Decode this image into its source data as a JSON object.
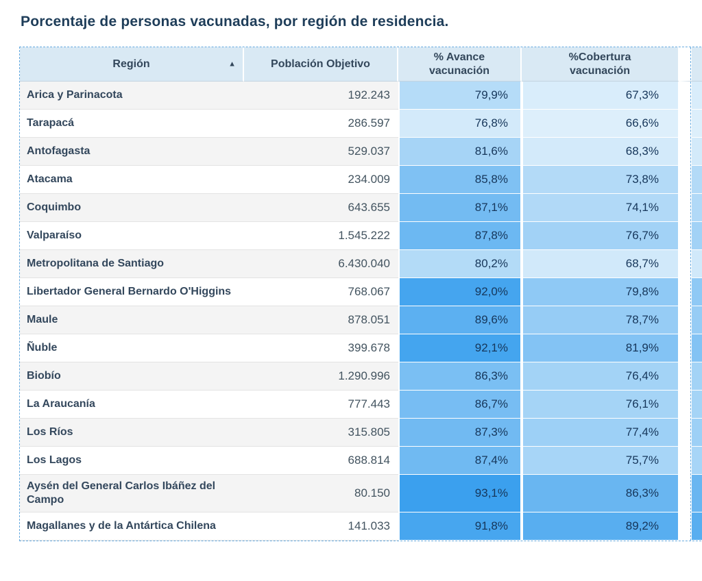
{
  "title": "Porcentaje de personas vacunadas, por región de residencia.",
  "theme": {
    "header_bg": "#d9e9f4",
    "header_text": "#33475b",
    "row_alt_bg": "#f4f4f4",
    "row_bg": "#ffffff",
    "region_text": "#33475c",
    "number_text": "#42535f",
    "pct_text": "#16365a",
    "table_outline": "#64a9df",
    "row_line": "#e3e3e3"
  },
  "table": {
    "columns": [
      {
        "label": "Región",
        "sort_icon": "▲"
      },
      {
        "label": "Población Objetivo"
      },
      {
        "label": "% Avance vacunación"
      },
      {
        "label": "%Cobertura vacunación"
      }
    ],
    "rows": [
      {
        "region": "Arica y Parinacota",
        "poblacion": "192.243",
        "avance": "79,9%",
        "avance_color": "#b5dcf8",
        "cobertura": "67,3%",
        "cobertura_color": "#d9edfb"
      },
      {
        "region": "Tarapacá",
        "poblacion": "286.597",
        "avance": "76,8%",
        "avance_color": "#d3eafa",
        "cobertura": "66,6%",
        "cobertura_color": "#ddeffb"
      },
      {
        "region": "Antofagasta",
        "poblacion": "529.037",
        "avance": "81,6%",
        "avance_color": "#a6d4f6",
        "cobertura": "68,3%",
        "cobertura_color": "#d3eafa"
      },
      {
        "region": "Atacama",
        "poblacion": "234.009",
        "avance": "85,8%",
        "avance_color": "#7fc1f3",
        "cobertura": "73,8%",
        "cobertura_color": "#b3daf7"
      },
      {
        "region": "Coquimbo",
        "poblacion": "643.655",
        "avance": "87,1%",
        "avance_color": "#73bbf2",
        "cobertura": "74,1%",
        "cobertura_color": "#b1d9f7"
      },
      {
        "region": "Valparaíso",
        "poblacion": "1.545.222",
        "avance": "87,8%",
        "avance_color": "#6cb8f2",
        "cobertura": "76,7%",
        "cobertura_color": "#a2d2f6"
      },
      {
        "region": "Metropolitana de Santiago",
        "poblacion": "6.430.040",
        "avance": "80,2%",
        "avance_color": "#b3dbf7",
        "cobertura": "68,7%",
        "cobertura_color": "#d1e9fa"
      },
      {
        "region": "Libertador General Bernardo O'Higgins",
        "poblacion": "768.067",
        "avance": "92,0%",
        "avance_color": "#45a5ef",
        "cobertura": "79,8%",
        "cobertura_color": "#8fc9f5"
      },
      {
        "region": "Maule",
        "poblacion": "878.051",
        "avance": "89,6%",
        "avance_color": "#5cb0f1",
        "cobertura": "78,7%",
        "cobertura_color": "#96ccf5"
      },
      {
        "region": "Ñuble",
        "poblacion": "399.678",
        "avance": "92,1%",
        "avance_color": "#44a5ef",
        "cobertura": "81,9%",
        "cobertura_color": "#83c3f4"
      },
      {
        "region": "Biobío",
        "poblacion": "1.290.996",
        "avance": "86,3%",
        "avance_color": "#7abff3",
        "cobertura": "76,4%",
        "cobertura_color": "#a3d3f6"
      },
      {
        "region": "La Araucanía",
        "poblacion": "777.443",
        "avance": "86,7%",
        "avance_color": "#77bdf3",
        "cobertura": "76,1%",
        "cobertura_color": "#a5d4f6"
      },
      {
        "region": "Los Ríos",
        "poblacion": "315.805",
        "avance": "87,3%",
        "avance_color": "#71baf2",
        "cobertura": "77,4%",
        "cobertura_color": "#9dd0f6"
      },
      {
        "region": "Los Lagos",
        "poblacion": "688.814",
        "avance": "87,4%",
        "avance_color": "#70baf2",
        "cobertura": "75,7%",
        "cobertura_color": "#a7d5f7"
      },
      {
        "region": "Aysén del General Carlos Ibáñez del Campo",
        "poblacion": "80.150",
        "avance": "93,1%",
        "avance_color": "#3ba0ee",
        "cobertura": "86,3%",
        "cobertura_color": "#69b6f1"
      },
      {
        "region": "Magallanes y de la Antártica Chilena",
        "poblacion": "141.033",
        "avance": "91,8%",
        "avance_color": "#47a6ef",
        "cobertura": "89,2%",
        "cobertura_color": "#58aef0"
      }
    ]
  },
  "chart_data": {
    "type": "table",
    "title": "Porcentaje de personas vacunadas, por región de residencia.",
    "columns": [
      "Región",
      "Población Objetivo",
      "% Avance vacunación",
      "%Cobertura vacunación"
    ],
    "rows": [
      [
        "Arica y Parinacota",
        192243,
        79.9,
        67.3
      ],
      [
        "Tarapacá",
        286597,
        76.8,
        66.6
      ],
      [
        "Antofagasta",
        529037,
        81.6,
        68.3
      ],
      [
        "Atacama",
        234009,
        85.8,
        73.8
      ],
      [
        "Coquimbo",
        643655,
        87.1,
        74.1
      ],
      [
        "Valparaíso",
        1545222,
        87.8,
        76.7
      ],
      [
        "Metropolitana de Santiago",
        6430040,
        80.2,
        68.7
      ],
      [
        "Libertador General Bernardo O'Higgins",
        768067,
        92.0,
        79.8
      ],
      [
        "Maule",
        878051,
        89.6,
        78.7
      ],
      [
        "Ñuble",
        399678,
        92.1,
        81.9
      ],
      [
        "Biobío",
        1290996,
        86.3,
        76.4
      ],
      [
        "La Araucanía",
        777443,
        86.7,
        76.1
      ],
      [
        "Los Ríos",
        315805,
        87.3,
        77.4
      ],
      [
        "Los Lagos",
        688814,
        87.4,
        75.7
      ],
      [
        "Aysén del General Carlos Ibáñez del Campo",
        80150,
        93.1,
        86.3
      ],
      [
        "Magallanes y de la Antártica Chilena",
        141033,
        91.8,
        89.2
      ]
    ],
    "notes": "Heatmap shading: higher percentage = darker blue. Sorted ascending by Región.",
    "sort": {
      "column": "Región",
      "direction": "asc"
    }
  }
}
